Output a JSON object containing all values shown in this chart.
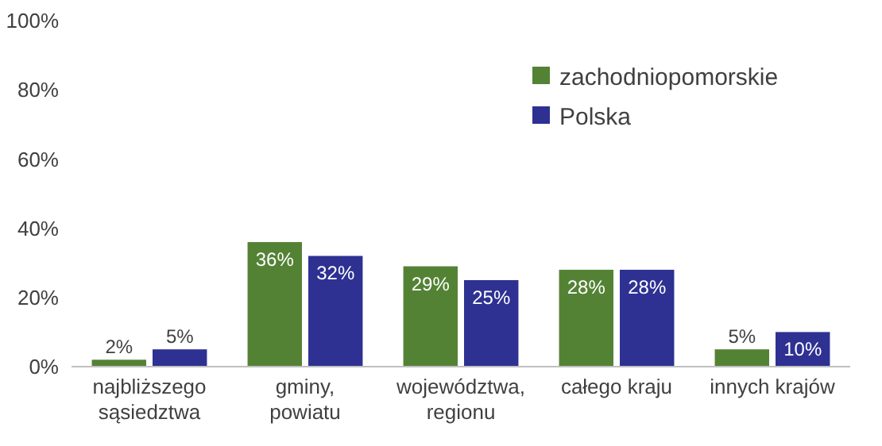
{
  "chart_data": {
    "type": "bar",
    "categories": [
      "najbliższego sąsiedztwa",
      "gminy, powiatu",
      "województwa, regionu",
      "całego kraju",
      "innych krajów"
    ],
    "series": [
      {
        "name": "zachodniopomorskie",
        "color": "#548235",
        "values": [
          2,
          36,
          29,
          28,
          5
        ],
        "value_labels": [
          "2%",
          "36%",
          "29%",
          "28%",
          "5%"
        ]
      },
      {
        "name": "Polska",
        "color": "#2e3192",
        "values": [
          5,
          32,
          25,
          28,
          10
        ],
        "value_labels": [
          "5%",
          "32%",
          "25%",
          "28%",
          "10%"
        ]
      }
    ],
    "ylim": [
      0,
      100
    ],
    "yticks": [
      {
        "value": 0,
        "label": "0%"
      },
      {
        "value": 20,
        "label": "20%"
      },
      {
        "value": 40,
        "label": "40%"
      },
      {
        "value": 60,
        "label": "60%"
      },
      {
        "value": 80,
        "label": "80%"
      },
      {
        "value": 100,
        "label": "100%"
      }
    ],
    "grid": false,
    "legend": "top right"
  }
}
